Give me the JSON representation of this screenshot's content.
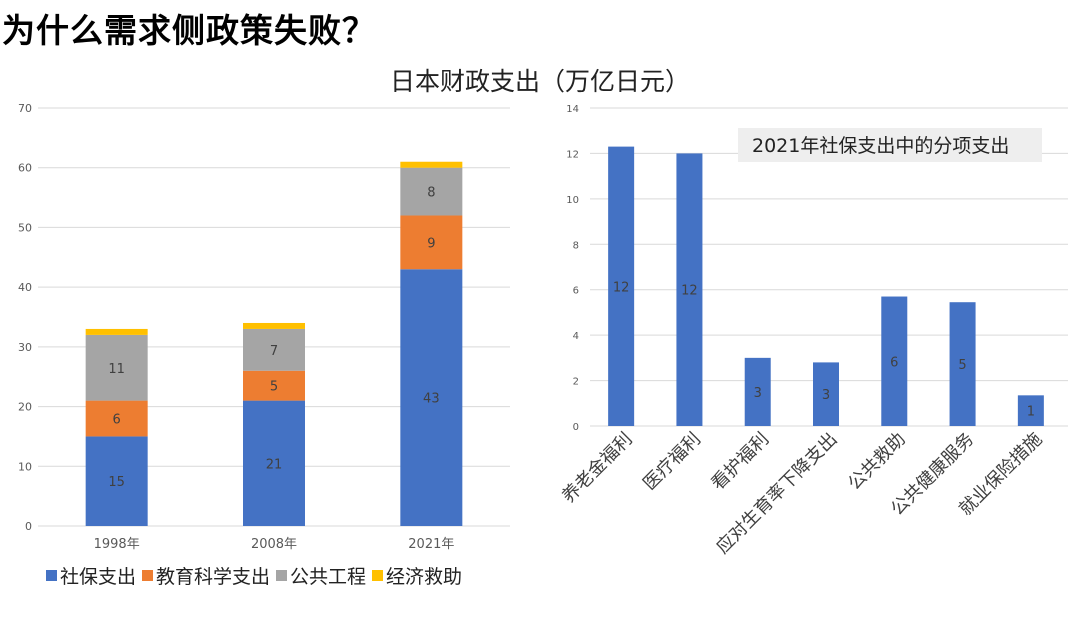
{
  "slide_title": "为什么需求侧政策失败？",
  "main_title": "日本财政支出（万亿日元）",
  "chart_data": [
    {
      "type": "bar",
      "stacked": true,
      "categories": [
        "1998年",
        "2008年",
        "2021年"
      ],
      "series": [
        {
          "name": "社保支出",
          "color": "#4472C4",
          "values": [
            15,
            21,
            43
          ],
          "labels": [
            "15",
            "21",
            "43"
          ]
        },
        {
          "name": "教育科学支出",
          "color": "#ED7D31",
          "values": [
            6,
            5,
            9
          ],
          "labels": [
            "6",
            "5",
            "9"
          ]
        },
        {
          "name": "公共工程",
          "color": "#A5A5A5",
          "values": [
            11,
            7,
            8
          ],
          "labels": [
            "11",
            "7",
            "8"
          ]
        },
        {
          "name": "经济救助",
          "color": "#FFC000",
          "values": [
            1,
            1,
            1
          ],
          "labels": [
            "",
            "",
            ""
          ]
        }
      ],
      "ylim": [
        0,
        70
      ],
      "yticks": [
        "0",
        "10",
        "20",
        "30",
        "40",
        "50",
        "60",
        "70"
      ],
      "grid": true,
      "legend": "bottom"
    },
    {
      "type": "bar",
      "title": "2021年社保支出中的分项支出",
      "categories": [
        "养老金福利",
        "医疗福利",
        "看护福利",
        "应对生育率下降支出",
        "公共救助",
        "公共健康服务",
        "就业保险措施"
      ],
      "values": [
        12.3,
        12.0,
        3.0,
        2.8,
        5.7,
        5.45,
        1.35
      ],
      "labels": [
        "12",
        "12",
        "3",
        "3",
        "6",
        "5",
        "1"
      ],
      "color": "#4472C4",
      "ylim": [
        0,
        14
      ],
      "yticks": [
        "0",
        "2",
        "4",
        "6",
        "8",
        "10",
        "12",
        "14"
      ],
      "grid": true
    }
  ]
}
